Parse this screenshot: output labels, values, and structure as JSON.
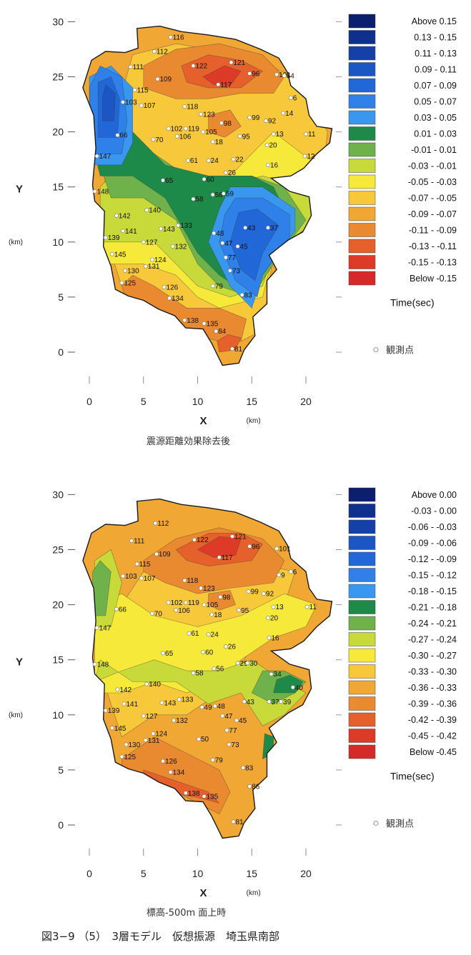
{
  "chart_data": [
    {
      "type": "heatmap",
      "subtitle": "震源距離効果除去後",
      "xlabel": "X",
      "ylabel": "Y",
      "x_unit": "(km)",
      "y_unit": "(km)",
      "xlim": [
        0,
        20
      ],
      "ylim": [
        0,
        30
      ],
      "xticks": [
        "0",
        "5",
        "10",
        "15",
        "20"
      ],
      "yticks": [
        "0",
        "5",
        "10",
        "15",
        "20",
        "25",
        "30"
      ],
      "legend_title": "Time(sec)",
      "legend_note": "観測点",
      "legend": [
        {
          "label": "Above   0.15",
          "color": "#0b1f6e"
        },
        {
          "label": "0.13 -  0.15",
          "color": "#10308e"
        },
        {
          "label": "0.11 -  0.13",
          "color": "#1540a8"
        },
        {
          "label": "0.09 -  0.11",
          "color": "#1b56c4"
        },
        {
          "label": "0.07 -  0.09",
          "color": "#2267d8"
        },
        {
          "label": "0.05 -  0.07",
          "color": "#2f80e8"
        },
        {
          "label": "0.03 -  0.05",
          "color": "#3a97f0"
        },
        {
          "label": "0.01 -  0.03",
          "color": "#1d8a4a"
        },
        {
          "label": "-0.01 -  0.01",
          "color": "#6fb14a"
        },
        {
          "label": "-0.03 - -0.01",
          "color": "#c8d93a"
        },
        {
          "label": "-0.05 - -0.03",
          "color": "#f6e93a"
        },
        {
          "label": "-0.07 - -0.05",
          "color": "#f6c83a"
        },
        {
          "label": "-0.09 - -0.07",
          "color": "#f0a733"
        },
        {
          "label": "-0.11 - -0.09",
          "color": "#ea8a30"
        },
        {
          "label": "-0.13 - -0.11",
          "color": "#e5602b"
        },
        {
          "label": "-0.15 - -0.13",
          "color": "#de3a28"
        },
        {
          "label": "Below  -0.15",
          "color": "#d62a2a"
        }
      ],
      "stations": [
        {
          "id": "116",
          "x": 7.5,
          "y": 28.6
        },
        {
          "id": "112",
          "x": 6.0,
          "y": 27.3
        },
        {
          "id": "122",
          "x": 9.6,
          "y": 26.0
        },
        {
          "id": "121",
          "x": 13.1,
          "y": 26.3
        },
        {
          "id": "96",
          "x": 14.8,
          "y": 25.3
        },
        {
          "id": "101",
          "x": 17.3,
          "y": 25.2
        },
        {
          "id": "64",
          "x": 18.0,
          "y": 25.1
        },
        {
          "id": "117",
          "x": 11.9,
          "y": 24.3
        },
        {
          "id": "111",
          "x": 3.8,
          "y": 25.9
        },
        {
          "id": "109",
          "x": 6.3,
          "y": 24.8
        },
        {
          "id": "115",
          "x": 4.2,
          "y": 23.8
        },
        {
          "id": "103",
          "x": 3.1,
          "y": 22.7
        },
        {
          "id": "107",
          "x": 4.8,
          "y": 22.4
        },
        {
          "id": "118",
          "x": 8.8,
          "y": 22.3
        },
        {
          "id": "123",
          "x": 10.3,
          "y": 21.6
        },
        {
          "id": "98",
          "x": 12.2,
          "y": 20.8
        },
        {
          "id": "99",
          "x": 14.8,
          "y": 21.3
        },
        {
          "id": "92",
          "x": 16.3,
          "y": 21.0
        },
        {
          "id": "66",
          "x": 2.6,
          "y": 19.7
        },
        {
          "id": "102",
          "x": 7.3,
          "y": 20.3
        },
        {
          "id": "119",
          "x": 8.9,
          "y": 20.3
        },
        {
          "id": "105",
          "x": 10.5,
          "y": 20.0
        },
        {
          "id": "70",
          "x": 5.9,
          "y": 19.3
        },
        {
          "id": "106",
          "x": 8.1,
          "y": 19.6
        },
        {
          "id": "18",
          "x": 11.4,
          "y": 19.1
        },
        {
          "id": "95",
          "x": 13.9,
          "y": 19.6
        },
        {
          "id": "20",
          "x": 16.4,
          "y": 18.8
        },
        {
          "id": "147",
          "x": 0.7,
          "y": 17.8
        },
        {
          "id": "61",
          "x": 9.1,
          "y": 17.4
        },
        {
          "id": "24",
          "x": 11.0,
          "y": 17.4
        },
        {
          "id": "22",
          "x": 13.3,
          "y": 17.5
        },
        {
          "id": "16",
          "x": 16.5,
          "y": 17.0
        },
        {
          "id": "148",
          "x": 0.5,
          "y": 14.6
        },
        {
          "id": "65",
          "x": 6.8,
          "y": 15.6
        },
        {
          "id": "60",
          "x": 10.6,
          "y": 15.7
        },
        {
          "id": "26",
          "x": 12.6,
          "y": 16.3
        },
        {
          "id": "140",
          "x": 5.3,
          "y": 12.9
        },
        {
          "id": "142",
          "x": 2.5,
          "y": 12.4
        },
        {
          "id": "143",
          "x": 6.6,
          "y": 11.2
        },
        {
          "id": "133",
          "x": 8.2,
          "y": 11.5
        },
        {
          "id": "139",
          "x": 1.5,
          "y": 10.4
        },
        {
          "id": "141",
          "x": 3.1,
          "y": 11.0
        },
        {
          "id": "127",
          "x": 5.0,
          "y": 10.0
        },
        {
          "id": "132",
          "x": 7.7,
          "y": 9.6
        },
        {
          "id": "145",
          "x": 2.1,
          "y": 8.9
        },
        {
          "id": "124",
          "x": 5.8,
          "y": 8.4
        },
        {
          "id": "131",
          "x": 5.2,
          "y": 7.8
        },
        {
          "id": "130",
          "x": 3.3,
          "y": 7.4
        },
        {
          "id": "125",
          "x": 3.0,
          "y": 6.3
        },
        {
          "id": "126",
          "x": 6.9,
          "y": 5.9
        },
        {
          "id": "134",
          "x": 7.4,
          "y": 4.9
        },
        {
          "id": "138",
          "x": 8.8,
          "y": 2.9
        },
        {
          "id": "135",
          "x": 10.6,
          "y": 2.6
        },
        {
          "id": "84",
          "x": 11.7,
          "y": 1.9
        },
        {
          "id": "81",
          "x": 13.2,
          "y": 0.3
        },
        {
          "id": "43",
          "x": 14.4,
          "y": 11.3
        },
        {
          "id": "37",
          "x": 16.5,
          "y": 11.3
        },
        {
          "id": "47",
          "x": 12.3,
          "y": 9.9
        },
        {
          "id": "45",
          "x": 13.7,
          "y": 9.6
        },
        {
          "id": "77",
          "x": 12.6,
          "y": 8.6
        },
        {
          "id": "73",
          "x": 13.0,
          "y": 7.4
        },
        {
          "id": "79",
          "x": 11.4,
          "y": 6.0
        },
        {
          "id": "83",
          "x": 14.1,
          "y": 5.2
        },
        {
          "id": "48",
          "x": 11.5,
          "y": 10.8
        },
        {
          "id": "56",
          "x": 11.4,
          "y": 14.3
        },
        {
          "id": "59",
          "x": 12.4,
          "y": 14.4
        },
        {
          "id": "58",
          "x": 9.6,
          "y": 13.9
        },
        {
          "id": "13",
          "x": 17.0,
          "y": 19.8
        },
        {
          "id": "14",
          "x": 17.9,
          "y": 21.7
        },
        {
          "id": "6",
          "x": 18.6,
          "y": 23.1
        },
        {
          "id": "11",
          "x": 20.0,
          "y": 19.8
        },
        {
          "id": "12",
          "x": 19.9,
          "y": 17.8
        }
      ]
    },
    {
      "type": "heatmap",
      "subtitle": "標高-500m 面上時",
      "xlabel": "X",
      "ylabel": "Y",
      "x_unit": "(km)",
      "y_unit": "(km)",
      "xlim": [
        0,
        20
      ],
      "ylim": [
        0,
        30
      ],
      "xticks": [
        "0",
        "5",
        "10",
        "15",
        "20"
      ],
      "yticks": [
        "0",
        "5",
        "10",
        "15",
        "20",
        "25",
        "30"
      ],
      "legend_title": "Time(sec)",
      "legend_note": "観測点",
      "legend": [
        {
          "label": "Above   0.00",
          "color": "#0b1f6e"
        },
        {
          "label": "-0.03 -  0.00",
          "color": "#10308e"
        },
        {
          "label": "-0.06 - -0.03",
          "color": "#1540a8"
        },
        {
          "label": "-0.09 - -0.06",
          "color": "#1b56c4"
        },
        {
          "label": "-0.12 - -0.09",
          "color": "#2267d8"
        },
        {
          "label": "-0.15 - -0.12",
          "color": "#2f80e8"
        },
        {
          "label": "-0.18 - -0.15",
          "color": "#3a97f0"
        },
        {
          "label": "-0.21 - -0.18",
          "color": "#1d8a4a"
        },
        {
          "label": "-0.24 - -0.21",
          "color": "#6fb14a"
        },
        {
          "label": "-0.27 - -0.24",
          "color": "#c8d93a"
        },
        {
          "label": "-0.30 - -0.27",
          "color": "#f6e93a"
        },
        {
          "label": "-0.33 - -0.30",
          "color": "#f6c83a"
        },
        {
          "label": "-0.36 - -0.33",
          "color": "#f0a733"
        },
        {
          "label": "-0.39 - -0.36",
          "color": "#ea8a30"
        },
        {
          "label": "-0.42 - -0.39",
          "color": "#e5602b"
        },
        {
          "label": "-0.45 - -0.42",
          "color": "#de3a28"
        },
        {
          "label": "Below  -0.45",
          "color": "#d62a2a"
        }
      ],
      "stations": [
        {
          "id": "112",
          "x": 6.1,
          "y": 27.4
        },
        {
          "id": "122",
          "x": 9.7,
          "y": 25.9
        },
        {
          "id": "121",
          "x": 13.2,
          "y": 26.2
        },
        {
          "id": "96",
          "x": 14.8,
          "y": 25.3
        },
        {
          "id": "101",
          "x": 17.3,
          "y": 25.1
        },
        {
          "id": "117",
          "x": 12.0,
          "y": 24.3
        },
        {
          "id": "111",
          "x": 3.9,
          "y": 25.8
        },
        {
          "id": "109",
          "x": 6.2,
          "y": 24.6
        },
        {
          "id": "115",
          "x": 4.4,
          "y": 23.7
        },
        {
          "id": "103",
          "x": 3.1,
          "y": 22.6
        },
        {
          "id": "107",
          "x": 4.8,
          "y": 22.4
        },
        {
          "id": "118",
          "x": 8.8,
          "y": 22.2
        },
        {
          "id": "123",
          "x": 10.3,
          "y": 21.5
        },
        {
          "id": "98",
          "x": 12.1,
          "y": 20.7
        },
        {
          "id": "99",
          "x": 14.7,
          "y": 21.2
        },
        {
          "id": "92",
          "x": 16.1,
          "y": 21.0
        },
        {
          "id": "66",
          "x": 2.5,
          "y": 19.6
        },
        {
          "id": "102",
          "x": 7.3,
          "y": 20.2
        },
        {
          "id": "119",
          "x": 8.9,
          "y": 20.2
        },
        {
          "id": "105",
          "x": 10.6,
          "y": 20.0
        },
        {
          "id": "70",
          "x": 5.8,
          "y": 19.2
        },
        {
          "id": "106",
          "x": 8.0,
          "y": 19.5
        },
        {
          "id": "18",
          "x": 11.3,
          "y": 19.1
        },
        {
          "id": "95",
          "x": 13.8,
          "y": 19.5
        },
        {
          "id": "20",
          "x": 16.5,
          "y": 18.8
        },
        {
          "id": "147",
          "x": 0.7,
          "y": 17.9
        },
        {
          "id": "61",
          "x": 9.2,
          "y": 17.4
        },
        {
          "id": "24",
          "x": 11.0,
          "y": 17.3
        },
        {
          "id": "16",
          "x": 16.6,
          "y": 17.0
        },
        {
          "id": "148",
          "x": 0.5,
          "y": 14.6
        },
        {
          "id": "65",
          "x": 6.8,
          "y": 15.6
        },
        {
          "id": "60",
          "x": 10.5,
          "y": 15.7
        },
        {
          "id": "26",
          "x": 12.6,
          "y": 16.2
        },
        {
          "id": "140",
          "x": 5.3,
          "y": 12.8
        },
        {
          "id": "142",
          "x": 2.6,
          "y": 12.3
        },
        {
          "id": "143",
          "x": 6.7,
          "y": 11.1
        },
        {
          "id": "133",
          "x": 8.3,
          "y": 11.4
        },
        {
          "id": "139",
          "x": 1.5,
          "y": 10.4
        },
        {
          "id": "141",
          "x": 3.2,
          "y": 11.0
        },
        {
          "id": "127",
          "x": 5.0,
          "y": 9.9
        },
        {
          "id": "132",
          "x": 7.8,
          "y": 9.5
        },
        {
          "id": "145",
          "x": 2.1,
          "y": 8.8
        },
        {
          "id": "124",
          "x": 5.9,
          "y": 8.3
        },
        {
          "id": "131",
          "x": 5.2,
          "y": 7.7
        },
        {
          "id": "130",
          "x": 3.4,
          "y": 7.3
        },
        {
          "id": "125",
          "x": 3.0,
          "y": 6.2
        },
        {
          "id": "126",
          "x": 6.8,
          "y": 5.8
        },
        {
          "id": "134",
          "x": 7.5,
          "y": 4.8
        },
        {
          "id": "138",
          "x": 8.9,
          "y": 2.9
        },
        {
          "id": "135",
          "x": 10.6,
          "y": 2.6
        },
        {
          "id": "81",
          "x": 13.3,
          "y": 0.3
        },
        {
          "id": "43",
          "x": 14.3,
          "y": 11.2
        },
        {
          "id": "37",
          "x": 16.6,
          "y": 11.2
        },
        {
          "id": "47",
          "x": 12.3,
          "y": 9.9
        },
        {
          "id": "45",
          "x": 13.6,
          "y": 9.5
        },
        {
          "id": "77",
          "x": 12.7,
          "y": 8.6
        },
        {
          "id": "73",
          "x": 12.9,
          "y": 7.3
        },
        {
          "id": "79",
          "x": 11.4,
          "y": 5.9
        },
        {
          "id": "83",
          "x": 14.2,
          "y": 5.2
        },
        {
          "id": "48",
          "x": 11.6,
          "y": 10.8
        },
        {
          "id": "56",
          "x": 11.5,
          "y": 14.2
        },
        {
          "id": "58",
          "x": 9.6,
          "y": 13.8
        },
        {
          "id": "49",
          "x": 10.4,
          "y": 10.7
        },
        {
          "id": "50",
          "x": 10.1,
          "y": 7.8
        },
        {
          "id": "86",
          "x": 14.8,
          "y": 3.5
        },
        {
          "id": "29",
          "x": 13.7,
          "y": 14.7
        },
        {
          "id": "30",
          "x": 14.6,
          "y": 14.7
        },
        {
          "id": "34",
          "x": 16.8,
          "y": 13.7
        },
        {
          "id": "40",
          "x": 18.8,
          "y": 12.5
        },
        {
          "id": "39",
          "x": 17.7,
          "y": 11.2
        },
        {
          "id": "13",
          "x": 17.0,
          "y": 19.8
        },
        {
          "id": "6",
          "x": 18.6,
          "y": 23.0
        },
        {
          "id": "11",
          "x": 20.1,
          "y": 19.8
        },
        {
          "id": "9",
          "x": 17.5,
          "y": 22.7
        }
      ]
    }
  ],
  "caption": "図3−9 （5）　3層モデル　仮想振源　埼玉県南部"
}
